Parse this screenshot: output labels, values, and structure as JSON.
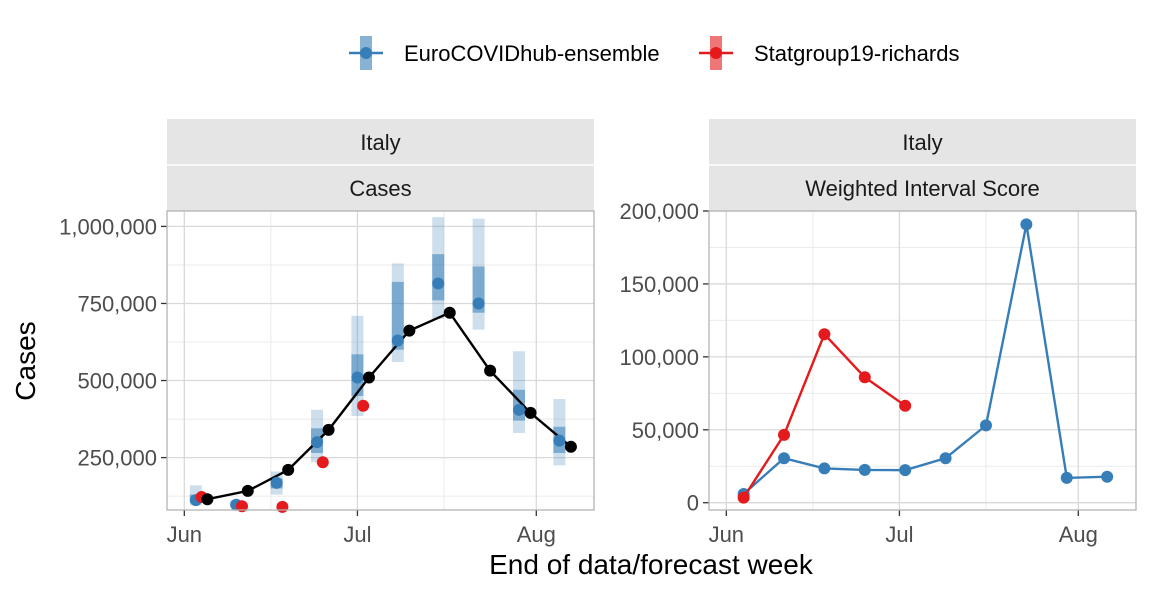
{
  "legend": [
    {
      "name": "EuroCOVIDhub-ensemble",
      "color": "#377eb8"
    },
    {
      "name": "Statgroup19-richards",
      "color": "#e41a1c"
    }
  ],
  "axis": {
    "xlabel": "End of data/forecast week",
    "ylabel": "Cases"
  },
  "chart_data": [
    {
      "type": "line",
      "panel_strip": [
        "Italy",
        "Cases"
      ],
      "x_ticks": [
        {
          "label": "Jun",
          "date": "2021-06-01"
        },
        {
          "label": "Jul",
          "date": "2021-07-01"
        },
        {
          "label": "Aug",
          "date": "2021-08-01"
        }
      ],
      "y_ticks": [
        {
          "label": "250,000",
          "value": 250000
        },
        {
          "label": "500,000",
          "value": 500000
        },
        {
          "label": "750,000",
          "value": 750000
        },
        {
          "label": "1,000,000",
          "value": 1000000
        }
      ],
      "ylim": [
        80000,
        1050000
      ],
      "observed": {
        "color": "#000000",
        "points": [
          [
            "2021-06-05",
            115000
          ],
          [
            "2021-06-12",
            142000
          ],
          [
            "2021-06-19",
            210000
          ],
          [
            "2021-06-26",
            340000
          ],
          [
            "2021-07-03",
            510000
          ],
          [
            "2021-07-10",
            662000
          ],
          [
            "2021-07-17",
            720000
          ],
          [
            "2021-07-24",
            532000
          ],
          [
            "2021-07-31",
            395000
          ],
          [
            "2021-08-07",
            285000
          ]
        ]
      },
      "forecasts": [
        {
          "name": "EuroCOVIDhub-ensemble",
          "color": "#377eb8",
          "points": [
            {
              "date": "2021-06-03",
              "median": 112000,
              "lo90": 95000,
              "hi90": 160000,
              "lo50": 105000,
              "hi50": 130000
            },
            {
              "date": "2021-06-10",
              "median": 97000,
              "lo90": 88000,
              "hi90": 112000,
              "lo50": 92000,
              "hi50": 104000
            },
            {
              "date": "2021-06-17",
              "median": 168000,
              "lo90": 130000,
              "hi90": 205000,
              "lo50": 150000,
              "hi50": 182000
            },
            {
              "date": "2021-06-24",
              "median": 300000,
              "lo90": 235000,
              "hi90": 405000,
              "lo50": 265000,
              "hi50": 345000
            },
            {
              "date": "2021-07-01",
              "median": 510000,
              "lo90": 385000,
              "hi90": 710000,
              "lo50": 450000,
              "hi50": 585000
            },
            {
              "date": "2021-07-08",
              "median": 630000,
              "lo90": 560000,
              "hi90": 880000,
              "lo50": 600000,
              "hi50": 820000
            },
            {
              "date": "2021-07-15",
              "median": 815000,
              "lo90": 700000,
              "hi90": 1030000,
              "lo50": 760000,
              "hi50": 910000
            },
            {
              "date": "2021-07-22",
              "median": 750000,
              "lo90": 665000,
              "hi90": 1025000,
              "lo50": 720000,
              "hi50": 870000
            },
            {
              "date": "2021-07-29",
              "median": 405000,
              "lo90": 330000,
              "hi90": 595000,
              "lo50": 370000,
              "hi50": 470000
            },
            {
              "date": "2021-08-05",
              "median": 305000,
              "lo90": 225000,
              "hi90": 440000,
              "lo50": 265000,
              "hi50": 350000
            }
          ]
        },
        {
          "name": "Statgroup19-richards",
          "color": "#e41a1c",
          "points": [
            {
              "date": "2021-06-04",
              "median": 122000
            },
            {
              "date": "2021-06-11",
              "median": 92000
            },
            {
              "date": "2021-06-18",
              "median": 90000
            },
            {
              "date": "2021-06-25",
              "median": 235000
            },
            {
              "date": "2021-07-02",
              "median": 418000
            }
          ]
        }
      ]
    },
    {
      "type": "line",
      "panel_strip": [
        "Italy",
        "Weighted Interval Score"
      ],
      "x_ticks": [
        {
          "label": "Jun",
          "date": "2021-06-01"
        },
        {
          "label": "Jul",
          "date": "2021-07-01"
        },
        {
          "label": "Aug",
          "date": "2021-08-01"
        }
      ],
      "y_ticks": [
        {
          "label": "0",
          "value": 0
        },
        {
          "label": "50,000",
          "value": 50000
        },
        {
          "label": "100,000",
          "value": 100000
        },
        {
          "label": "150,000",
          "value": 150000
        },
        {
          "label": "200,000",
          "value": 200000
        }
      ],
      "ylim": [
        -5000,
        200000
      ],
      "series": [
        {
          "name": "EuroCOVIDhub-ensemble",
          "color": "#377eb8",
          "points": [
            [
              "2021-06-04",
              6000
            ],
            [
              "2021-06-11",
              30500
            ],
            [
              "2021-06-18",
              23500
            ],
            [
              "2021-06-25",
              22500
            ],
            [
              "2021-07-02",
              22300
            ],
            [
              "2021-07-09",
              30500
            ],
            [
              "2021-07-16",
              53000
            ],
            [
              "2021-07-23",
              190800
            ],
            [
              "2021-07-30",
              17000
            ],
            [
              "2021-08-06",
              17800
            ]
          ]
        },
        {
          "name": "Statgroup19-richards",
          "color": "#e41a1c",
          "points": [
            [
              "2021-06-04",
              3500
            ],
            [
              "2021-06-11",
              46500
            ],
            [
              "2021-06-18",
              115500
            ],
            [
              "2021-06-25",
              86000
            ],
            [
              "2021-07-02",
              66500
            ]
          ]
        }
      ]
    }
  ]
}
